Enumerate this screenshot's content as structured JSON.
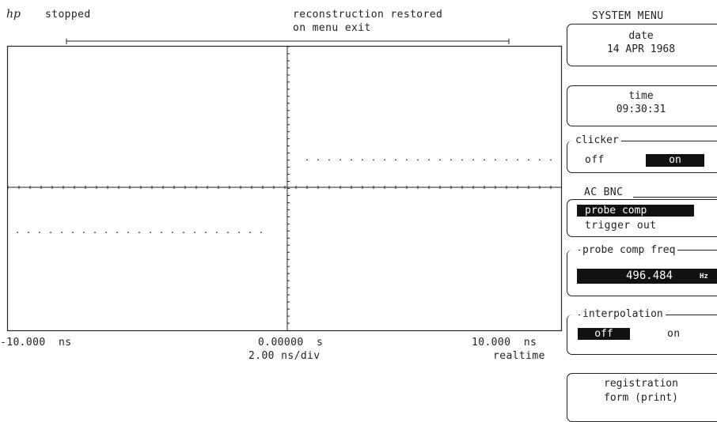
{
  "status": {
    "logo": "hp",
    "run_state": "stopped",
    "message_line1": "reconstruction restored",
    "message_line2": "on menu exit"
  },
  "axis": {
    "left_time": "-10.000  ns",
    "center_time": "0.00000  s",
    "right_time": "10.000  ns",
    "time_per_div": "2.00 ns/div",
    "acquisition_mode": "realtime"
  },
  "waveform": {
    "description_values": "dotted square wave (probe comp)",
    "high_level_divs": 0.55,
    "low_level_divs": -0.65
  },
  "menu": {
    "title": "SYSTEM MENU",
    "date_label": "date",
    "date_value": "14 APR 1968",
    "time_label": "time",
    "time_value": "09:30:31",
    "clicker_label": "clicker",
    "clicker_off": "off",
    "clicker_on": "on",
    "clicker_selected": "on",
    "ac_bnc_label": "AC BNC",
    "ac_bnc_probe_comp": "probe comp",
    "ac_bnc_trigger_out": "trigger out",
    "ac_bnc_selected": "probe comp",
    "probe_freq_label": "probe comp freq",
    "probe_freq_value": "496.484",
    "probe_freq_unit": "Hz",
    "interpolation_label": "interpolation",
    "interpolation_off": "off",
    "interpolation_on": "on",
    "interpolation_selected": "off",
    "registration_line1": "registration",
    "registration_line2": "form (print)"
  }
}
